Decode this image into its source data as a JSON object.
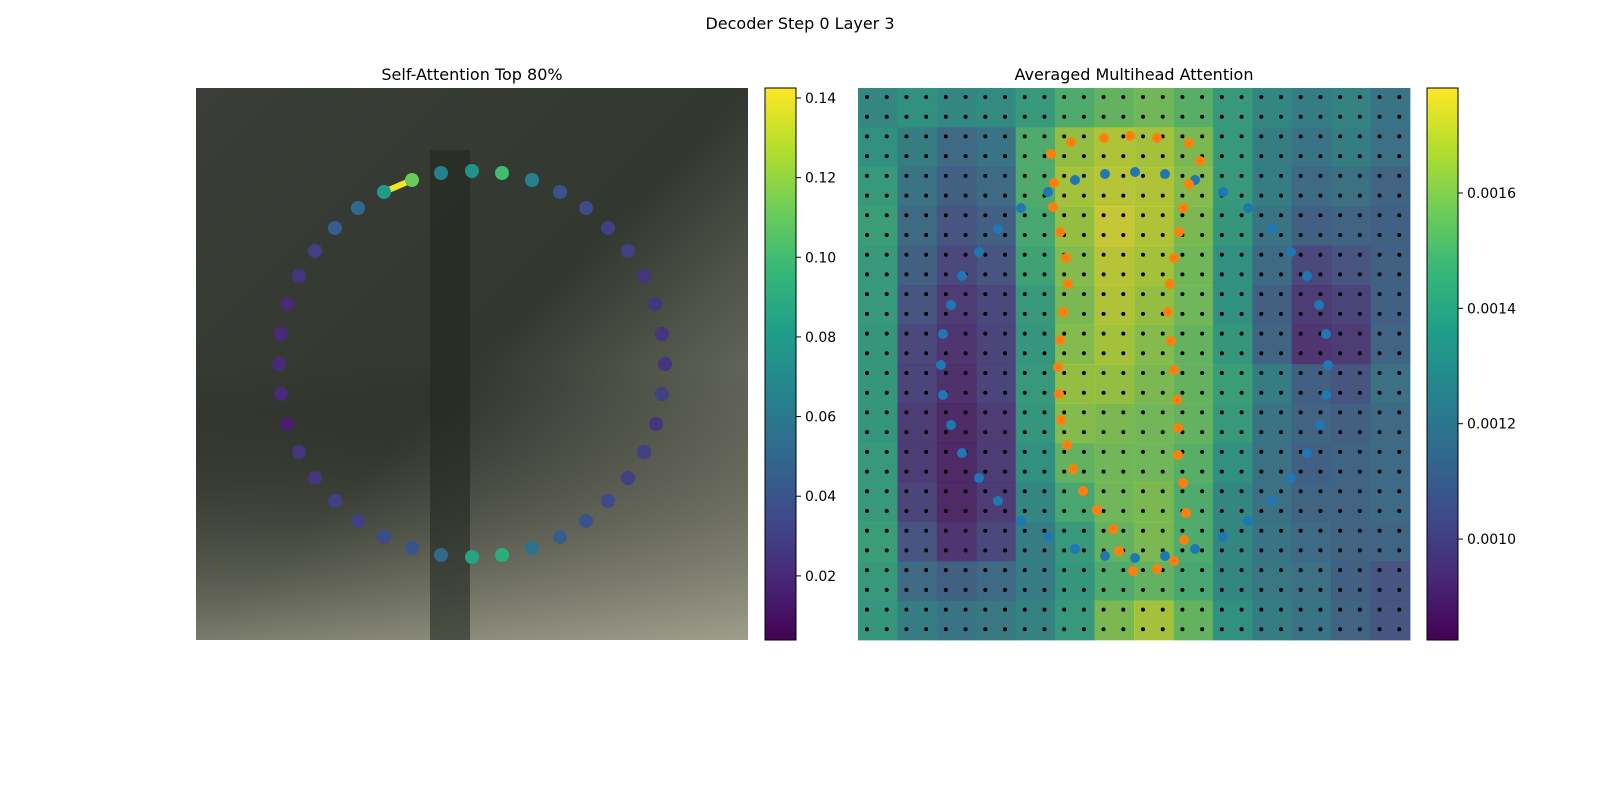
{
  "title": "Decoder Step 0 Layer 3",
  "chart_data": [
    {
      "type": "scatter",
      "title": "Self-Attention Top 80%",
      "xlim": [
        0,
        552
      ],
      "ylim": [
        552,
        0
      ],
      "colormap": "viridis",
      "clim": [
        0.0039,
        0.1425
      ],
      "cticks": [
        0.02,
        0.04,
        0.06,
        0.08,
        0.1,
        0.12,
        0.14
      ],
      "cticklabels": [
        "0.02",
        "0.04",
        "0.06",
        "0.08",
        "0.10",
        "0.12",
        "0.14"
      ],
      "x": [
        276,
        306,
        336,
        364,
        390,
        412,
        432,
        448,
        459,
        466,
        469,
        466,
        460,
        448,
        432,
        412,
        390,
        364,
        336,
        306,
        276,
        245,
        216,
        188,
        162,
        139,
        119,
        103,
        91,
        85,
        83,
        85,
        91,
        103,
        119,
        139,
        162,
        188,
        216,
        245
      ],
      "y": [
        83,
        85,
        92,
        104,
        120,
        140,
        163,
        188,
        216,
        246,
        276,
        306,
        336,
        364,
        390,
        413,
        433,
        449,
        460,
        467,
        469,
        467,
        460,
        449,
        433,
        413,
        390,
        364,
        336,
        306,
        276,
        246,
        216,
        188,
        163,
        140,
        120,
        104,
        92,
        85
      ],
      "values": [
        0.075,
        0.1,
        0.065,
        0.04,
        0.035,
        0.03,
        0.03,
        0.025,
        0.025,
        0.025,
        0.025,
        0.03,
        0.025,
        0.03,
        0.03,
        0.035,
        0.04,
        0.045,
        0.055,
        0.09,
        0.085,
        0.05,
        0.04,
        0.035,
        0.03,
        0.03,
        0.025,
        0.025,
        0.015,
        0.02,
        0.02,
        0.02,
        0.02,
        0.025,
        0.03,
        0.045,
        0.05,
        0.08,
        0.11,
        0.065
      ],
      "edge": {
        "x": [
          188,
          216
        ],
        "y": [
          104,
          92
        ],
        "value": 0.14
      }
    },
    {
      "type": "heatmap",
      "title": "Averaged Multihead Attention",
      "xlim": [
        0,
        552
      ],
      "ylim": [
        552,
        0
      ],
      "colormap": "viridis",
      "clim": [
        0.000825,
        0.001782
      ],
      "cticks": [
        {
          "value": 0.001,
          "label": "0.0010"
        },
        0.0012,
        0.0014,
        0.0016
      ],
      "z": [
        [
          0.0013,
          0.00135,
          0.0013,
          0.00132,
          0.0014,
          0.0015,
          0.00155,
          0.00158,
          0.00152,
          0.0014,
          0.0013,
          0.00125,
          0.00128,
          0.0012
        ],
        [
          0.00135,
          0.00125,
          0.00115,
          0.0012,
          0.0015,
          0.00165,
          0.0017,
          0.00168,
          0.0016,
          0.0014,
          0.00125,
          0.0012,
          0.00125,
          0.00118
        ],
        [
          0.0014,
          0.0012,
          0.0011,
          0.00115,
          0.0015,
          0.00168,
          0.00172,
          0.0017,
          0.00162,
          0.0014,
          0.00125,
          0.00115,
          0.00118,
          0.00112
        ],
        [
          0.00142,
          0.00115,
          0.00105,
          0.0011,
          0.00148,
          0.00165,
          0.00175,
          0.0017,
          0.0016,
          0.00138,
          0.0012,
          0.0011,
          0.00112,
          0.0011
        ],
        [
          0.0014,
          0.0011,
          0.001,
          0.00105,
          0.00145,
          0.00162,
          0.00172,
          0.00168,
          0.00158,
          0.00135,
          0.00115,
          0.001,
          0.00105,
          0.0011
        ],
        [
          0.0014,
          0.00105,
          0.00095,
          0.001,
          0.0014,
          0.0016,
          0.0017,
          0.00165,
          0.00158,
          0.00135,
          0.0011,
          0.00095,
          0.00098,
          0.0011
        ],
        [
          0.00138,
          0.001,
          0.00092,
          0.00098,
          0.00138,
          0.00162,
          0.00168,
          0.00162,
          0.00155,
          0.00138,
          0.00112,
          0.00092,
          0.00095,
          0.00112
        ],
        [
          0.00138,
          0.00098,
          0.0009,
          0.00098,
          0.0014,
          0.00165,
          0.00165,
          0.0016,
          0.00155,
          0.00142,
          0.00125,
          0.0011,
          0.00105,
          0.00118
        ],
        [
          0.00138,
          0.00095,
          0.00088,
          0.00095,
          0.00138,
          0.00162,
          0.0016,
          0.00158,
          0.00155,
          0.0014,
          0.0012,
          0.00112,
          0.0011,
          0.00115
        ],
        [
          0.0014,
          0.00095,
          0.00088,
          0.00095,
          0.00135,
          0.00155,
          0.00158,
          0.00158,
          0.00152,
          0.00135,
          0.00118,
          0.0011,
          0.00112,
          0.00115
        ],
        [
          0.0014,
          0.00098,
          0.00088,
          0.00095,
          0.0013,
          0.00148,
          0.00158,
          0.0016,
          0.0015,
          0.0013,
          0.00118,
          0.00112,
          0.00112,
          0.00115
        ],
        [
          0.00142,
          0.00105,
          0.00092,
          0.001,
          0.00125,
          0.0014,
          0.00155,
          0.0016,
          0.0015,
          0.0013,
          0.0012,
          0.00115,
          0.00112,
          0.00112
        ],
        [
          0.0014,
          0.00115,
          0.0011,
          0.00115,
          0.00125,
          0.00138,
          0.0015,
          0.00155,
          0.00148,
          0.0013,
          0.00122,
          0.00118,
          0.0011,
          0.00105
        ],
        [
          0.00138,
          0.00125,
          0.0012,
          0.00122,
          0.00128,
          0.0014,
          0.0016,
          0.00168,
          0.00155,
          0.00135,
          0.00125,
          0.0012,
          0.00112,
          0.00105
        ]
      ],
      "series": [
        {
          "color": "#1f77b4",
          "x": [
            277,
            307,
            337,
            365,
            390,
            414,
            433,
            449,
            461,
            468,
            470,
            468,
            462,
            449,
            433,
            414,
            390,
            365,
            337,
            307,
            277,
            247,
            217,
            190,
            163,
            140,
            121,
            104,
            93,
            85,
            83,
            85,
            93,
            104,
            121,
            140,
            163,
            190,
            217,
            247
          ],
          "y": [
            84,
            86,
            92,
            104,
            120,
            141,
            164,
            188,
            217,
            246,
            277,
            307,
            337,
            365,
            390,
            413,
            433,
            449,
            461,
            468,
            470,
            468,
            461,
            449,
            433,
            413,
            390,
            365,
            337,
            307,
            277,
            246,
            217,
            188,
            164,
            141,
            120,
            104,
            92,
            86
          ]
        },
        {
          "color": "#ff7f0e",
          "x": [
            193,
            213,
            246,
            272,
            299,
            331,
            342,
            331,
            325,
            321,
            316,
            312,
            310,
            313,
            316,
            319,
            320,
            320,
            325,
            328,
            326,
            316,
            299,
            275,
            261,
            255,
            239,
            225,
            215,
            209,
            203,
            201,
            200,
            202,
            205,
            210,
            208,
            202,
            195,
            196
          ],
          "y": [
            66,
            54,
            50,
            48,
            50,
            55,
            73,
            96,
            120,
            144,
            170,
            196,
            224,
            253,
            282,
            312,
            340,
            367,
            395,
            425,
            452,
            473,
            481,
            483,
            463,
            441,
            422,
            403,
            381,
            357,
            332,
            306,
            279,
            252,
            224,
            196,
            170,
            144,
            119,
            95
          ]
        }
      ]
    }
  ]
}
